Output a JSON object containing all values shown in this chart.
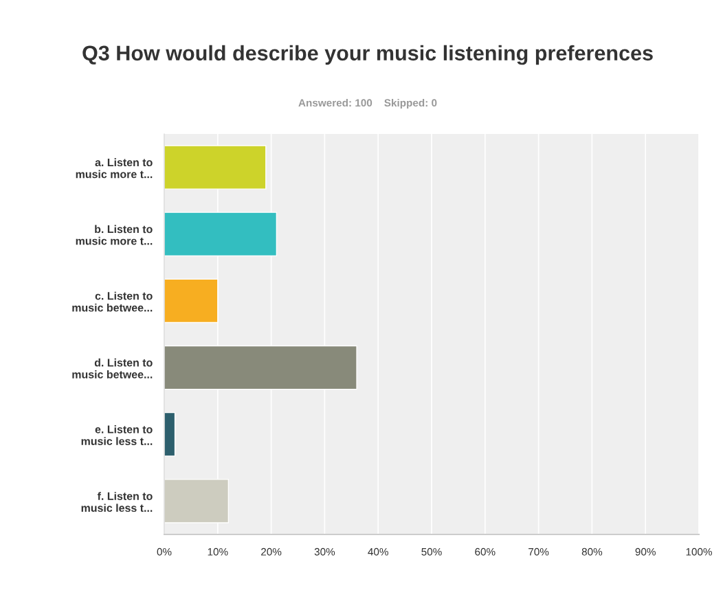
{
  "chart_data": {
    "type": "bar",
    "orientation": "horizontal",
    "title": "Q3 How would describe your music listening preferences",
    "subtitle": "Answered: 100    Skipped: 0",
    "categories": [
      "a. Listen to\nmusic more t...",
      "b. Listen to\nmusic more t...",
      "c. Listen to\nmusic betwee...",
      "d. Listen to\nmusic betwee...",
      "e. Listen to\nmusic less t...",
      "f. Listen to\nmusic less t..."
    ],
    "values": [
      19,
      21,
      10,
      36,
      2,
      12
    ],
    "colors": [
      "#cdd32a",
      "#33bec0",
      "#f7ae21",
      "#888a7a",
      "#2d5f6d",
      "#cdccbf"
    ],
    "xlim": [
      0,
      100
    ],
    "xticks": [
      {
        "value": 0,
        "label": "0%"
      },
      {
        "value": 10,
        "label": "10%"
      },
      {
        "value": 20,
        "label": "20%"
      },
      {
        "value": 30,
        "label": "30%"
      },
      {
        "value": 40,
        "label": "40%"
      },
      {
        "value": 50,
        "label": "50%"
      },
      {
        "value": 60,
        "label": "60%"
      },
      {
        "value": 70,
        "label": "70%"
      },
      {
        "value": 80,
        "label": "80%"
      },
      {
        "value": 90,
        "label": "90%"
      },
      {
        "value": 100,
        "label": "100%"
      }
    ],
    "grid": "x",
    "legend": false
  }
}
